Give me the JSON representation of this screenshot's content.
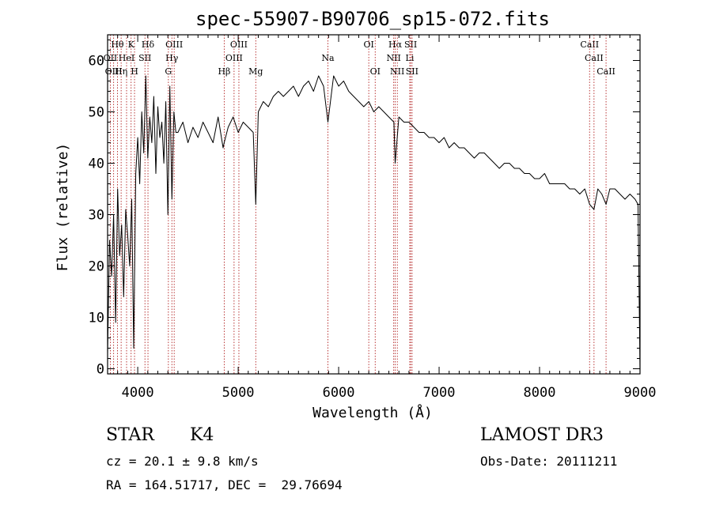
{
  "chart_data": {
    "type": "line",
    "title": "spec-55907-B90706_sp15-072.fits",
    "xlabel": "Wavelength (Å)",
    "ylabel": "Flux (relative)",
    "xlim": [
      3700,
      9000
    ],
    "ylim": [
      -1,
      65
    ],
    "xticks": [
      4000,
      5000,
      6000,
      7000,
      8000,
      9000
    ],
    "yticks": [
      0,
      10,
      20,
      30,
      40,
      50,
      60
    ],
    "grid": false,
    "series": [
      {
        "x": [
          3700,
          3720,
          3740,
          3760,
          3780,
          3800,
          3820,
          3840,
          3860,
          3880,
          3900,
          3920,
          3940,
          3960,
          3980,
          4000,
          4020,
          4040,
          4060,
          4080,
          4100,
          4120,
          4140,
          4160,
          4180,
          4200,
          4220,
          4240,
          4260,
          4280,
          4300,
          4320,
          4340,
          4360,
          4380,
          4400,
          4450,
          4500,
          4550,
          4600,
          4650,
          4700,
          4750,
          4800,
          4850,
          4861,
          4900,
          4950,
          5000,
          5050,
          5100,
          5150,
          5175,
          5200,
          5250,
          5300,
          5350,
          5400,
          5450,
          5500,
          5550,
          5600,
          5650,
          5700,
          5750,
          5800,
          5850,
          5893,
          5950,
          6000,
          6050,
          6100,
          6150,
          6200,
          6250,
          6300,
          6350,
          6400,
          6450,
          6500,
          6550,
          6563,
          6600,
          6650,
          6700,
          6750,
          6800,
          6850,
          6900,
          6950,
          7000,
          7050,
          7100,
          7150,
          7200,
          7250,
          7300,
          7350,
          7400,
          7450,
          7500,
          7550,
          7600,
          7650,
          7700,
          7750,
          7800,
          7850,
          7900,
          7950,
          8000,
          8050,
          8100,
          8150,
          8200,
          8250,
          8300,
          8350,
          8400,
          8450,
          8498,
          8542,
          8580,
          8620,
          8662,
          8700,
          8750,
          8800,
          8850,
          8900,
          8950,
          8980,
          9000
        ],
        "y": [
          3,
          25,
          18,
          30,
          9,
          35,
          22,
          28,
          14,
          31,
          26,
          20,
          33,
          4,
          38,
          45,
          36,
          50,
          42,
          57,
          41,
          49,
          44,
          53,
          38,
          51,
          45,
          48,
          40,
          52,
          30,
          55,
          33,
          50,
          46,
          46,
          48,
          44,
          47,
          45,
          48,
          46,
          44,
          49,
          43,
          44,
          47,
          49,
          46,
          48,
          47,
          46,
          32,
          50,
          52,
          51,
          53,
          54,
          53,
          54,
          55,
          53,
          55,
          56,
          54,
          57,
          55,
          48,
          57,
          55,
          56,
          54,
          53,
          52,
          51,
          52,
          50,
          51,
          50,
          49,
          48,
          40,
          49,
          48,
          48,
          47,
          46,
          46,
          45,
          45,
          44,
          45,
          43,
          44,
          43,
          43,
          42,
          41,
          42,
          42,
          41,
          40,
          39,
          40,
          40,
          39,
          39,
          38,
          38,
          37,
          37,
          38,
          36,
          36,
          36,
          36,
          35,
          35,
          34,
          35,
          32,
          31,
          35,
          34,
          32,
          35,
          35,
          34,
          33,
          34,
          33,
          32,
          0
        ]
      }
    ],
    "line_markers": [
      {
        "label": "Hθ",
        "x": 3798,
        "row": 0
      },
      {
        "label": "K",
        "x": 3934,
        "row": 0
      },
      {
        "label": "Hδ",
        "x": 4102,
        "row": 0
      },
      {
        "label": "OIII",
        "x": 4363,
        "row": 0
      },
      {
        "label": "OIII",
        "x": 5007,
        "row": 0
      },
      {
        "label": "OI",
        "x": 6300,
        "row": 0
      },
      {
        "label": "Hα",
        "x": 6563,
        "row": 0
      },
      {
        "label": "SII",
        "x": 6717,
        "row": 0
      },
      {
        "label": "CaII",
        "x": 8498,
        "row": 0
      },
      {
        "label": "OII",
        "x": 3727,
        "row": 1
      },
      {
        "label": "HeI",
        "x": 3889,
        "row": 1
      },
      {
        "label": "SII",
        "x": 4072,
        "row": 1
      },
      {
        "label": "Hγ",
        "x": 4340,
        "row": 1
      },
      {
        "label": "OIII",
        "x": 4959,
        "row": 1
      },
      {
        "label": "Na",
        "x": 5893,
        "row": 1
      },
      {
        "label": "NII",
        "x": 6548,
        "row": 1
      },
      {
        "label": "Li",
        "x": 6708,
        "row": 1
      },
      {
        "label": "CaII",
        "x": 8542,
        "row": 1
      },
      {
        "label": "OIII",
        "x": 3760,
        "row": 2
      },
      {
        "label": "Hη",
        "x": 3835,
        "row": 2
      },
      {
        "label": "H",
        "x": 3968,
        "row": 2
      },
      {
        "label": "G",
        "x": 4305,
        "row": 2
      },
      {
        "label": "Hβ",
        "x": 4861,
        "row": 2
      },
      {
        "label": "Mg",
        "x": 5175,
        "row": 2
      },
      {
        "label": "OI",
        "x": 6364,
        "row": 2
      },
      {
        "label": "NII",
        "x": 6584,
        "row": 2
      },
      {
        "label": "SII",
        "x": 6731,
        "row": 2
      },
      {
        "label": "CaII",
        "x": 8662,
        "row": 2
      }
    ],
    "colors": {
      "spectrum": "#000000",
      "marker_lines": "#b22222",
      "axes": "#000000"
    }
  },
  "info": {
    "object_class": "STAR",
    "subclass": "K4",
    "survey": "LAMOST DR3",
    "redshift": "cz = 20.1 ± 9.8 km/s",
    "obs_date": "Obs-Date: 20111211",
    "coords": "RA = 164.51717, DEC =  29.76694"
  }
}
